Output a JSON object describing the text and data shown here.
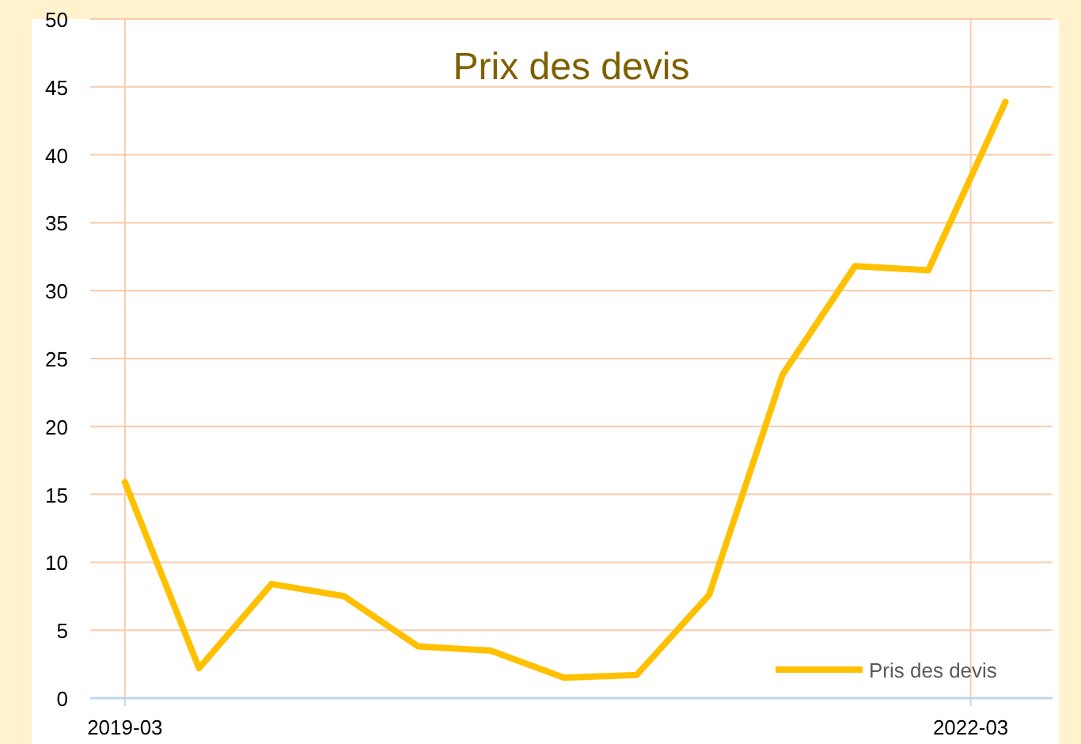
{
  "chart_data": {
    "type": "line",
    "title": "Prix des devis",
    "x": [
      "2019-03-01",
      "2019-06-05",
      "2019-09-07",
      "2019-12-10",
      "2020-03-15",
      "2020-06-17",
      "2020-09-20",
      "2020-12-23",
      "2021-03-27",
      "2021-06-30",
      "2021-10-02",
      "2022-01-05",
      "2022-04-15"
    ],
    "series": [
      {
        "name": "Pris des devis",
        "color": "#ffc000",
        "values": [
          15.9,
          2.2,
          8.4,
          7.5,
          3.8,
          3.5,
          1.5,
          1.7,
          7.6,
          23.8,
          31.8,
          31.5,
          43.9
        ]
      }
    ],
    "xlim": [
      "2019-01-15",
      "2022-06-15"
    ],
    "xticks": [
      {
        "value": "2019-03-01",
        "label": "2019-03"
      },
      {
        "value": "2022-03-01",
        "label": "2022-03"
      }
    ],
    "ylim": [
      0,
      50
    ],
    "yticks": [
      0,
      5,
      10,
      15,
      20,
      25,
      30,
      35,
      40,
      45,
      50
    ],
    "grid": true,
    "legend": "bottom right",
    "marker": "none",
    "line_style": "solid"
  }
}
